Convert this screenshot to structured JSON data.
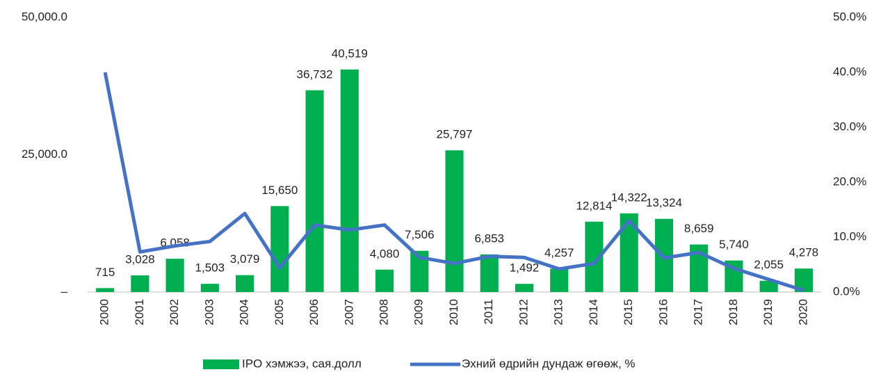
{
  "chart_data": {
    "type": "bar",
    "categories": [
      "2000",
      "2001",
      "2002",
      "2003",
      "2004",
      "2005",
      "2006",
      "2007",
      "2008",
      "2009",
      "2010",
      "2011",
      "2012",
      "2013",
      "2014",
      "2015",
      "2016",
      "2017",
      "2018",
      "2019",
      "2020"
    ],
    "series": [
      {
        "name": "IPO хэмжээ, сая.долл",
        "color": "#00b050",
        "type": "bar",
        "values": [
          715,
          3028,
          6058,
          1503,
          3079,
          15650,
          36732,
          40519,
          4080,
          7506,
          25797,
          6853,
          1492,
          4257,
          12814,
          14322,
          13324,
          8659,
          5740,
          2055,
          4278
        ],
        "value_labels": [
          "715",
          "3,028",
          "6,058",
          "1,503",
          "3,079",
          "15,650",
          "36,732",
          "40,519",
          "4,080",
          "7,506",
          "25,797",
          "6,853",
          "1,492",
          "4,257",
          "12,814",
          "14,322",
          "13,324",
          "8,659",
          "5,740",
          "2,055",
          "4,278"
        ]
      },
      {
        "name": "Эхний өдрийн дундаж өгөөж, %",
        "color": "#4472c4",
        "type": "line",
        "axis": "y2",
        "values": [
          40,
          7.3,
          8.4,
          9.2,
          14.3,
          4.4,
          12.2,
          11.3,
          12.2,
          6.3,
          5.2,
          6.5,
          6.3,
          4.2,
          5.2,
          13,
          6.2,
          7.2,
          4.3,
          2.3,
          0.3
        ]
      }
    ],
    "ylim": [
      0,
      50000
    ],
    "yticks": [
      {
        "value": 0,
        "label": "–"
      },
      {
        "value": 25000,
        "label": "25,000.0"
      },
      {
        "value": 50000,
        "label": "50,000.0"
      }
    ],
    "y2lim": [
      0,
      50
    ],
    "y2ticks": [
      {
        "value": 0,
        "label": "0.0%"
      },
      {
        "value": 10,
        "label": "10.0%"
      },
      {
        "value": 20,
        "label": "20.0%"
      },
      {
        "value": 30,
        "label": "30.0%"
      },
      {
        "value": 40,
        "label": "40.0%"
      },
      {
        "value": 50,
        "label": "50.0%"
      }
    ],
    "legend": "bottom"
  }
}
